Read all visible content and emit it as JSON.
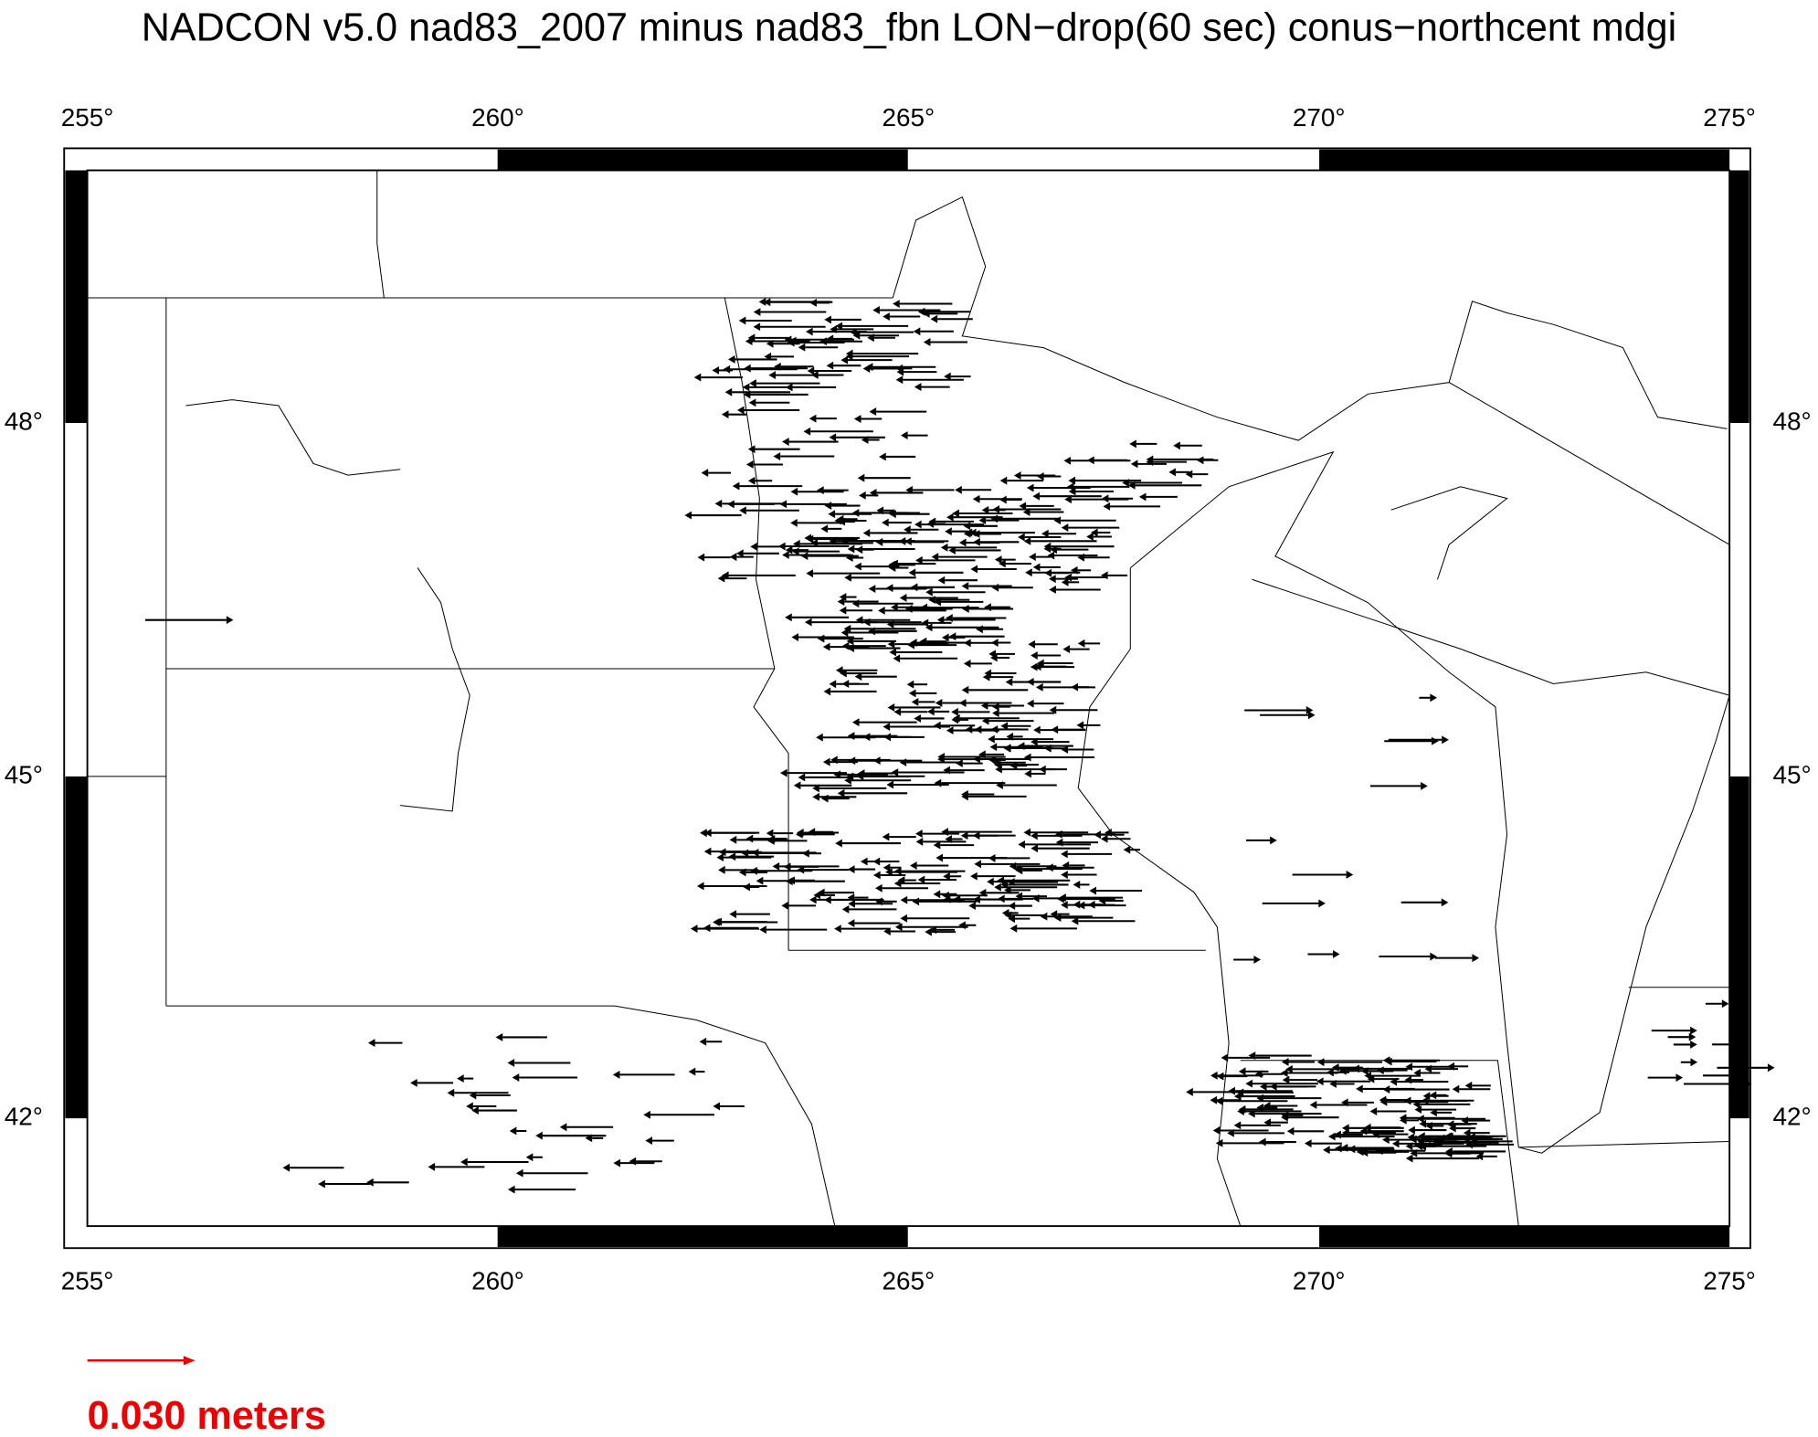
{
  "header": {
    "title": "NADCON v5.0 nad83_2007 minus nad83_fbn LON−drop(60 sec) conus−northcent mdgi"
  },
  "map": {
    "lon_ticks": [
      "255°",
      "260°",
      "265°",
      "270°",
      "275°"
    ],
    "lat_ticks": [
      "48°",
      "45°",
      "42°"
    ]
  },
  "legend": {
    "label": "0.030 meters"
  }
}
